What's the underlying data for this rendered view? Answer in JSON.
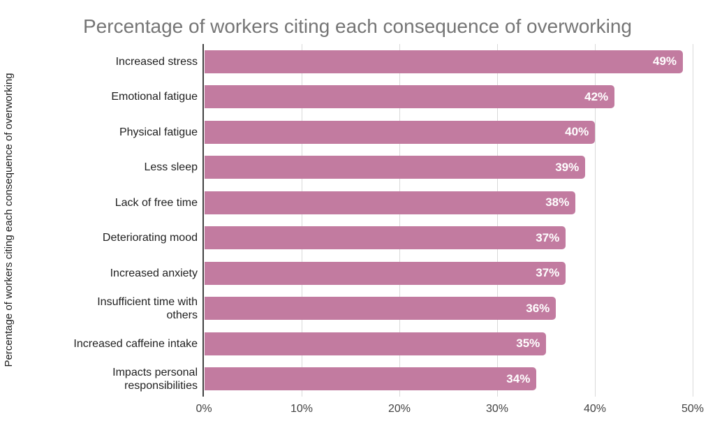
{
  "chart_data": {
    "type": "bar",
    "orientation": "horizontal",
    "title": "Percentage of workers citing each consequence of overworking",
    "xlabel": "",
    "ylabel": "Percentage of workers citing each consequence of overworking",
    "categories": [
      "Increased stress",
      "Emotional fatigue",
      "Physical fatigue",
      "Less sleep",
      "Lack of free time",
      "Deteriorating mood",
      "Increased anxiety",
      "Insufficient time with others",
      "Increased caffeine intake",
      "Impacts personal responsibilities"
    ],
    "category_display_lines": [
      [
        "Increased stress"
      ],
      [
        "Emotional fatigue"
      ],
      [
        "Physical fatigue"
      ],
      [
        "Less sleep"
      ],
      [
        "Lack of free time"
      ],
      [
        "Deteriorating mood"
      ],
      [
        "Increased anxiety"
      ],
      [
        "Insufficient time with",
        "others"
      ],
      [
        "Increased caffeine intake"
      ],
      [
        "Impacts personal",
        "responsibilities"
      ]
    ],
    "values": [
      49,
      42,
      40,
      39,
      38,
      37,
      37,
      36,
      35,
      34
    ],
    "value_labels": [
      "49%",
      "42%",
      "40%",
      "39%",
      "38%",
      "37%",
      "37%",
      "36%",
      "35%",
      "34%"
    ],
    "xlim": [
      0,
      50
    ],
    "x_ticks": [
      {
        "label": "0%",
        "value": 0
      },
      {
        "label": "10%",
        "value": 10
      },
      {
        "label": "20%",
        "value": 20
      },
      {
        "label": "30%",
        "value": 30
      },
      {
        "label": "40%",
        "value": 40
      },
      {
        "label": "50%",
        "value": 50
      }
    ],
    "grid": true,
    "legend": "none",
    "colors": {
      "bar": "#c27ba0",
      "value_text": "#ffffff",
      "title_text": "#757575",
      "label_text": "#212121",
      "tick_text": "#424242",
      "grid_line": "#d9d9d9",
      "axis_line": "#424242",
      "background": "#ffffff"
    }
  }
}
